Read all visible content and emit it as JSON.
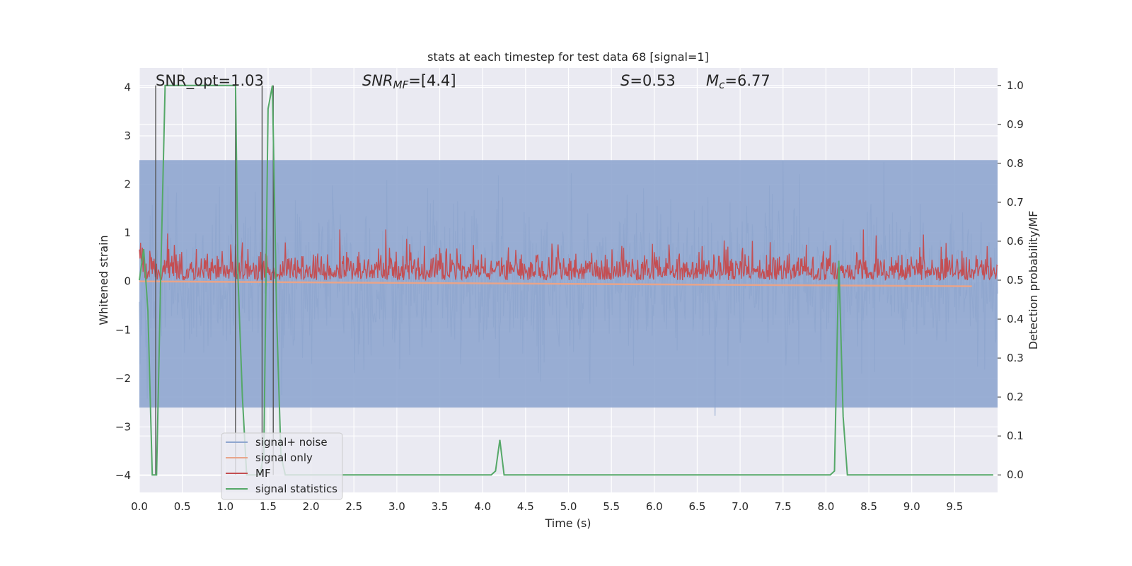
{
  "chart_data": {
    "type": "line",
    "title": "stats at each timestep for test data 68 [signal=1]",
    "xlabel": "Time (s)",
    "ylabel": "Whitened strain",
    "y2label": "Detection probability/MF",
    "xlim": [
      0.0,
      10.0
    ],
    "ylim": [
      -4.35,
      4.4
    ],
    "y2lim": [
      -0.045,
      1.045
    ],
    "grid": true,
    "legend_position": "lower-left",
    "x_ticks": [
      "0.0",
      "0.5",
      "1.0",
      "1.5",
      "2.0",
      "2.5",
      "3.0",
      "3.5",
      "4.0",
      "4.5",
      "5.0",
      "5.5",
      "6.0",
      "6.5",
      "7.0",
      "7.5",
      "8.0",
      "8.5",
      "9.0",
      "9.5"
    ],
    "y_ticks": [
      "4",
      "3",
      "2",
      "1",
      "0",
      "−1",
      "−2",
      "−3",
      "−4"
    ],
    "y2_ticks": [
      "1.0",
      "0.9",
      "0.8",
      "0.7",
      "0.6",
      "0.5",
      "0.4",
      "0.3",
      "0.2",
      "0.1",
      "0.0"
    ],
    "annotations": {
      "snr_opt": "SNR_opt=1.03",
      "snr_mf": "SNR",
      "snr_mf_sub": "MF",
      "snr_mf_val": "=[4.4]",
      "s_sym": "S",
      "s_val": "=0.53",
      "mc_sym": "M",
      "mc_sub": "c",
      "mc_val": "=6.77"
    },
    "series": [
      {
        "name": "signal+ noise",
        "color": "#8fa6cf",
        "kind": "noise",
        "band": [
          -2.6,
          2.5
        ]
      },
      {
        "name": "signal only",
        "color": "#e8a48a",
        "kind": "chirp",
        "x": [
          0.0,
          9.7
        ],
        "y": [
          0.0,
          -0.1
        ]
      },
      {
        "name": "MF",
        "color": "#c44e52",
        "kind": "mf",
        "mean": 0.5,
        "axis": "right"
      },
      {
        "name": "signal statistics",
        "color": "#55a868",
        "axis": "right",
        "x": [
          0.0,
          0.05,
          0.1,
          0.15,
          0.2,
          0.25,
          0.3,
          1.12,
          1.15,
          1.2,
          1.25,
          1.3,
          1.35,
          1.4,
          1.45,
          1.5,
          1.55,
          1.6,
          1.65,
          1.7,
          4.1,
          4.15,
          4.2,
          4.25,
          4.3,
          8.05,
          8.1,
          8.15,
          8.2,
          8.25,
          8.3,
          9.95
        ],
        "y": [
          0.5,
          0.58,
          0.42,
          0.0,
          0.0,
          0.52,
          1.0,
          1.0,
          0.5,
          0.2,
          0.0,
          0.0,
          0.0,
          0.0,
          0.05,
          0.94,
          1.0,
          0.4,
          0.05,
          0.0,
          0.0,
          0.01,
          0.09,
          0.0,
          0.0,
          0.0,
          0.01,
          0.55,
          0.15,
          0.0,
          0.0,
          0.0
        ]
      }
    ],
    "vlines": [
      0.19,
      1.12,
      1.43,
      1.56
    ]
  }
}
